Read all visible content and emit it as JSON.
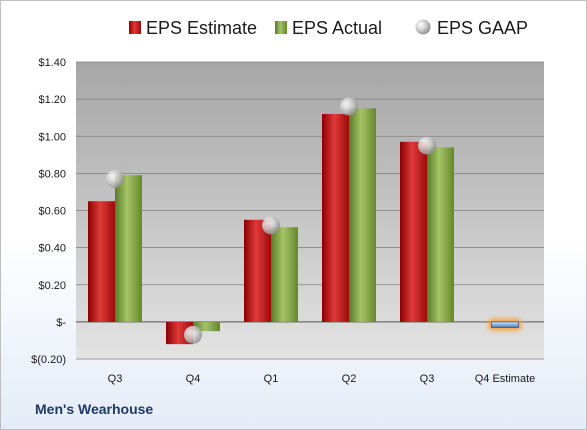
{
  "chart_data": {
    "type": "bar",
    "categories": [
      "Q3",
      "Q4",
      "Q1",
      "Q2",
      "Q3",
      "Q4 Estimate"
    ],
    "series": [
      {
        "name": "EPS Estimate",
        "kind": "bar",
        "color": "#c00000",
        "values": [
          0.65,
          -0.12,
          0.55,
          1.12,
          0.97,
          null
        ]
      },
      {
        "name": "EPS Actual",
        "kind": "bar",
        "color": "#77933c",
        "values": [
          0.79,
          -0.05,
          0.51,
          1.15,
          0.94,
          -0.03
        ]
      },
      {
        "name": "EPS GAAP",
        "kind": "marker",
        "color": "#bfbfbf",
        "values": [
          0.77,
          -0.07,
          0.52,
          1.16,
          0.95,
          null
        ]
      }
    ],
    "highlight": {
      "category": "Q4 Estimate",
      "note": "blue bar with orange glow"
    },
    "yticks": [
      "$(0.20)",
      "$-",
      "$0.20",
      "$0.40",
      "$0.60",
      "$0.80",
      "$1.00",
      "$1.20",
      "$1.40"
    ],
    "ylim": [
      -0.2,
      1.4
    ],
    "grid": true,
    "legend_position": "top",
    "title": "",
    "xlabel": "",
    "ylabel": ""
  },
  "footer": {
    "company": "Men's Wearhouse"
  }
}
